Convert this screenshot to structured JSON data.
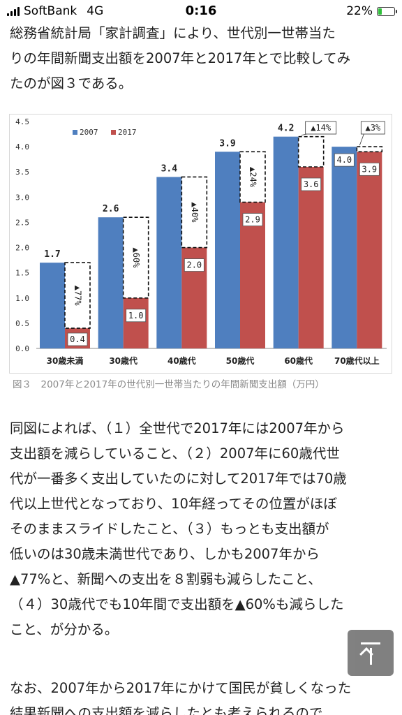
{
  "status_bar": {
    "carrier": "SoftBank",
    "network": "4G",
    "time": "0:16",
    "battery_percent": "22%",
    "battery_level": 0.22
  },
  "intro_lines": [
    "総務省統計局「家計調査」により、世代別一世帯当た",
    "りの年間新聞支出額を2007年と2017年とで比較してみ",
    "たのが図３である。"
  ],
  "chart_data": {
    "type": "bar",
    "categories": [
      "30歳未満",
      "30歳代",
      "40歳代",
      "50歳代",
      "60歳代",
      "70歳代以上"
    ],
    "series": [
      {
        "name": "2007",
        "values": [
          1.7,
          2.6,
          3.4,
          3.9,
          4.2,
          4.0
        ],
        "color": "#4f7fbf"
      },
      {
        "name": "2017",
        "values": [
          0.4,
          1.0,
          2.0,
          2.9,
          3.6,
          3.9
        ],
        "color": "#c0504d"
      }
    ],
    "value_labels_2007": [
      "1.7",
      "2.6",
      "3.4",
      "3.9",
      "4.2",
      "4.0"
    ],
    "value_labels_2017": [
      "0.4",
      "1.0",
      "2.0",
      "2.9",
      "3.6",
      "3.9"
    ],
    "change_labels": [
      "▲77%",
      "▲60%",
      "▲40%",
      "▲24%",
      "▲14%",
      "▲3%"
    ],
    "y_ticks": [
      "0.0",
      "0.5",
      "1.0",
      "1.5",
      "2.0",
      "2.5",
      "3.0",
      "3.5",
      "4.0",
      "4.5"
    ],
    "ylim": [
      0,
      4.5
    ],
    "legend": "top-left",
    "grid": false
  },
  "caption": "図３　2007年と2017年の世代別一世帯当たりの年間新聞支出額（万円）",
  "body_lines": [
    "同図によれば、（１）全世代で2017年には2007年から",
    "支出額を減らしていること、（２）2007年に60歳代世",
    "代が一番多く支出していたのに対して2017年では70歳",
    "代以上世代となっており、10年経ってその位置がほぼ",
    "そのままスライドしたこと、（３）もっとも支出額が",
    "低いのは30歳未満世代であり、しかも2007年から",
    "▲77%と、新聞への支出を８割弱も減らしたこと、",
    "（４）30歳代でも10年間で支出額を▲60%も減らした",
    "こと、が分かる。"
  ],
  "bottom_lines": [
    "なお、2007年から2017年にかけて国民が貧しくなった",
    "結果新聞への支出額を減らしたとも考えられるので"
  ],
  "scroll_top_icon": "arrow-up-to-top-icon"
}
